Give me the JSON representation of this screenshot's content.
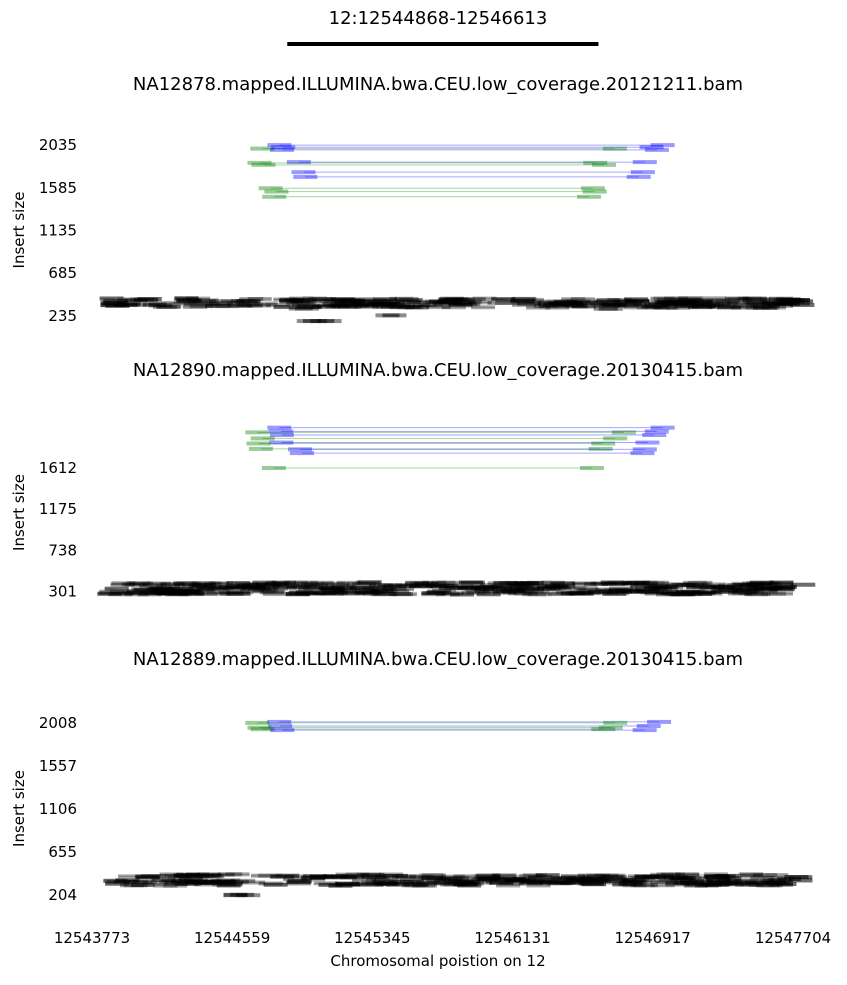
{
  "chart_data": {
    "type": "scatter",
    "region_label": "12:12544868-12546613",
    "region": {
      "start": 12544868,
      "end": 12546613
    },
    "x_axis": {
      "label": "Chromosomal poistion on 12",
      "ticks": [
        12543773,
        12544559,
        12545345,
        12546131,
        12546917,
        12547704
      ],
      "range": [
        12543773,
        12547704
      ]
    },
    "y_label": "Insert size",
    "colors": {
      "normal": "#000000",
      "deletion": "#0000ff",
      "other": "#008000",
      "region_bar": "#000000"
    },
    "legend": "none",
    "grid": false,
    "panels": [
      {
        "title": "NA12878.mapped.ILLUMINA.bwa.CEU.low_coverage.20121211.bam",
        "y_ticks": [
          2035,
          1585,
          1135,
          685,
          235
        ],
        "ylim": [
          170,
          2110
        ],
        "pairs": [
          {
            "a": 12544824,
            "b": 12546973,
            "y": 2035,
            "kind": "deletion"
          },
          {
            "a": 12544845,
            "b": 12546911,
            "y": 2013,
            "kind": "deletion"
          },
          {
            "a": 12544728,
            "b": 12546705,
            "y": 1998,
            "kind": "other"
          },
          {
            "a": 12544838,
            "b": 12546941,
            "y": 1985,
            "kind": "deletion"
          },
          {
            "a": 12544933,
            "b": 12546873,
            "y": 1856,
            "kind": "deletion"
          },
          {
            "a": 12544712,
            "b": 12546595,
            "y": 1848,
            "kind": "other"
          },
          {
            "a": 12544734,
            "b": 12546644,
            "y": 1827,
            "kind": "other"
          },
          {
            "a": 12544959,
            "b": 12546862,
            "y": 1750,
            "kind": "deletion"
          },
          {
            "a": 12544969,
            "b": 12546839,
            "y": 1700,
            "kind": "deletion"
          },
          {
            "a": 12544775,
            "b": 12546582,
            "y": 1580,
            "kind": "other"
          },
          {
            "a": 12544807,
            "b": 12546592,
            "y": 1545,
            "kind": "other"
          },
          {
            "a": 12544795,
            "b": 12546560,
            "y": 1490,
            "kind": "other"
          }
        ],
        "normal": {
          "y_range": [
            320,
            420
          ],
          "spans": [
            [
              12543800,
              12544612
            ],
            [
              12544779,
              12546495
            ],
            [
              12546572,
              12547697
            ]
          ],
          "count": 200,
          "outliers": [
            {
              "a": 12544956,
              "b": 12545056,
              "y": 180
            },
            {
              "a": 12545038,
              "b": 12545132,
              "y": 180
            },
            {
              "a": 12545402,
              "b": 12545497,
              "y": 240
            },
            {
              "a": 12546615,
              "b": 12546721,
              "y": 310
            },
            {
              "a": 12544912,
              "b": 12545011,
              "y": 312
            }
          ]
        }
      },
      {
        "title": "NA12890.mapped.ILLUMINA.bwa.CEU.low_coverage.20130415.bam",
        "y_ticks": [
          1612,
          1175,
          738,
          301
        ],
        "ylim": [
          180,
          2100
        ],
        "pairs": [
          {
            "a": 12544823,
            "b": 12546973,
            "y": 2040,
            "kind": "deletion"
          },
          {
            "a": 12544834,
            "b": 12546940,
            "y": 2000,
            "kind": "deletion"
          },
          {
            "a": 12544700,
            "b": 12546756,
            "y": 1990,
            "kind": "other"
          },
          {
            "a": 12544838,
            "b": 12546926,
            "y": 1962,
            "kind": "deletion"
          },
          {
            "a": 12544730,
            "b": 12546707,
            "y": 1926,
            "kind": "other"
          },
          {
            "a": 12544835,
            "b": 12546888,
            "y": 1882,
            "kind": "deletion"
          },
          {
            "a": 12544706,
            "b": 12546640,
            "y": 1872,
            "kind": "other"
          },
          {
            "a": 12544720,
            "b": 12546625,
            "y": 1815,
            "kind": "other"
          },
          {
            "a": 12544940,
            "b": 12546873,
            "y": 1810,
            "kind": "deletion"
          },
          {
            "a": 12544950,
            "b": 12546860,
            "y": 1770,
            "kind": "deletion"
          },
          {
            "a": 12544793,
            "b": 12546577,
            "y": 1612,
            "kind": "other"
          }
        ],
        "normal": {
          "y_range": [
            270,
            400
          ],
          "spans": [
            [
              12543800,
              12547697
            ]
          ],
          "count": 260,
          "outliers": []
        }
      },
      {
        "title": "NA12889.mapped.ILLUMINA.bwa.CEU.low_coverage.20130415.bam",
        "y_ticks": [
          2008,
          1557,
          1106,
          655,
          204
        ],
        "ylim": [
          140,
          2080
        ],
        "pairs": [
          {
            "a": 12544823,
            "b": 12546953,
            "y": 2018,
            "kind": "deletion"
          },
          {
            "a": 12544700,
            "b": 12546707,
            "y": 2008,
            "kind": "other"
          },
          {
            "a": 12544828,
            "b": 12546895,
            "y": 1975,
            "kind": "deletion"
          },
          {
            "a": 12544712,
            "b": 12546682,
            "y": 1958,
            "kind": "other"
          },
          {
            "a": 12544729,
            "b": 12546640,
            "y": 1942,
            "kind": "other"
          },
          {
            "a": 12544840,
            "b": 12546872,
            "y": 1932,
            "kind": "deletion"
          }
        ],
        "normal": {
          "y_range": [
            300,
            420
          ],
          "spans": [
            [
              12543830,
              12544609
            ],
            [
              12544655,
              12546570
            ],
            [
              12546610,
              12547697
            ]
          ],
          "count": 220,
          "outliers": [
            {
              "a": 12544548,
              "b": 12544645,
              "y": 205
            },
            {
              "a": 12544582,
              "b": 12544645,
              "y": 201
            }
          ]
        }
      }
    ]
  }
}
